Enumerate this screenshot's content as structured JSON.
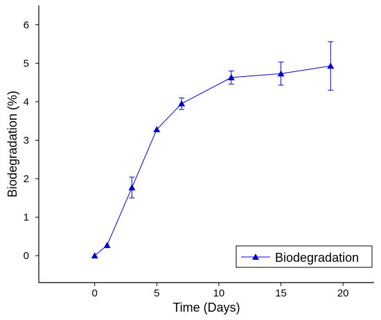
{
  "chart_data": {
    "type": "line",
    "xlabel": "Time (Days)",
    "ylabel": "Biodegradation (%)",
    "xlim": [
      -4.5,
      22.5
    ],
    "ylim": [
      -0.7,
      6.5
    ],
    "x_ticks": [
      0,
      5,
      10,
      15,
      20
    ],
    "y_ticks": [
      0,
      1,
      2,
      3,
      4,
      5,
      6
    ],
    "grid": false,
    "legend_position": "bottom-right",
    "series": [
      {
        "name": "Biodegradation",
        "color": "#0000cc",
        "marker": "triangle",
        "points": [
          {
            "x": 0,
            "y": 0.0,
            "err": 0.0
          },
          {
            "x": 1,
            "y": 0.27,
            "err": 0.0
          },
          {
            "x": 3,
            "y": 1.77,
            "err": 0.27
          },
          {
            "x": 5,
            "y": 3.28,
            "err": 0.0
          },
          {
            "x": 7,
            "y": 3.95,
            "err": 0.15
          },
          {
            "x": 11,
            "y": 4.63,
            "err": 0.17
          },
          {
            "x": 15,
            "y": 4.73,
            "err": 0.3
          },
          {
            "x": 19,
            "y": 4.93,
            "err": 0.63
          }
        ]
      }
    ]
  }
}
